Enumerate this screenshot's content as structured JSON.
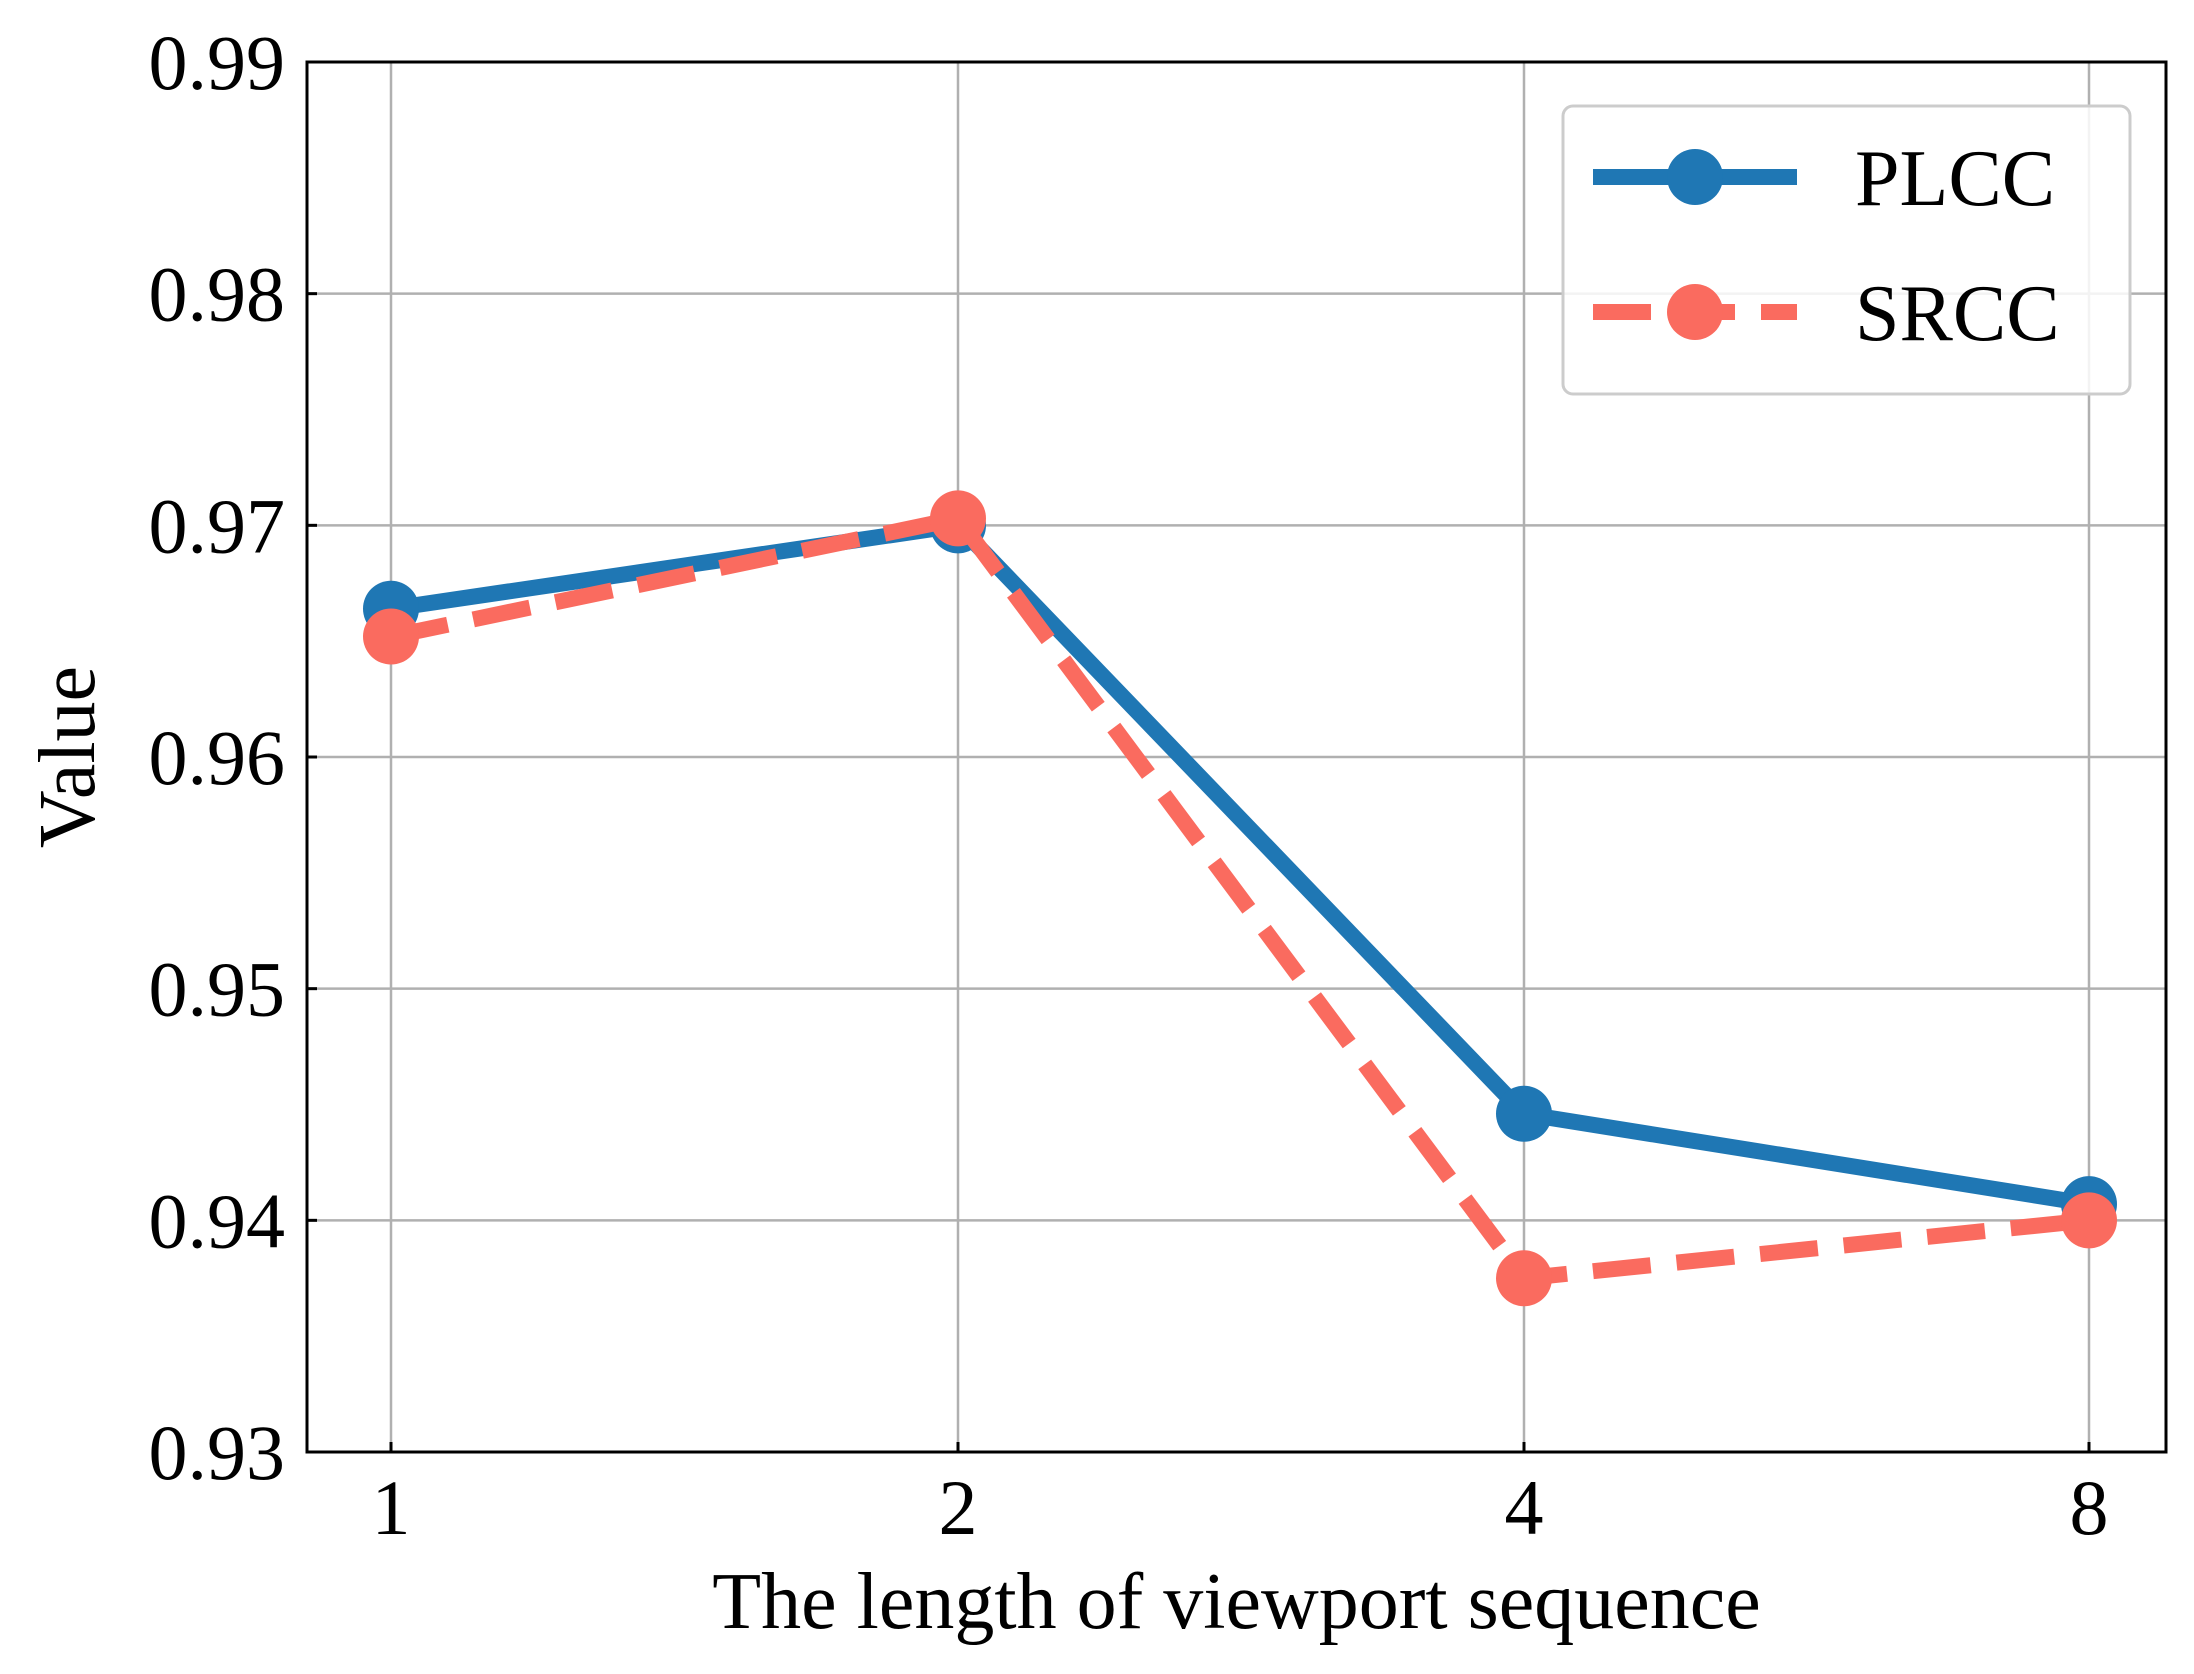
{
  "chart_data": {
    "type": "line",
    "title": "",
    "xlabel": "The length of viewport sequence",
    "ylabel": "Value",
    "categories": [
      "1",
      "2",
      "4",
      "8"
    ],
    "ylim": [
      0.93,
      0.99
    ],
    "yticks": [
      0.93,
      0.94,
      0.95,
      0.96,
      0.97,
      0.98,
      0.99
    ],
    "ytick_labels": [
      "0.93",
      "0.94",
      "0.95",
      "0.96",
      "0.97",
      "0.98",
      "0.99"
    ],
    "grid": true,
    "legend_position": "top-right",
    "series": [
      {
        "name": "PLCC",
        "values": [
          0.9664,
          0.97,
          0.9446,
          0.9407
        ],
        "color": "#1f77b4",
        "line_style": "solid",
        "marker": "circle"
      },
      {
        "name": "SRCC",
        "values": [
          0.9652,
          0.9703,
          0.9375,
          0.94
        ],
        "color": "#fa6b5f",
        "line_style": "dashed",
        "marker": "circle"
      }
    ]
  }
}
